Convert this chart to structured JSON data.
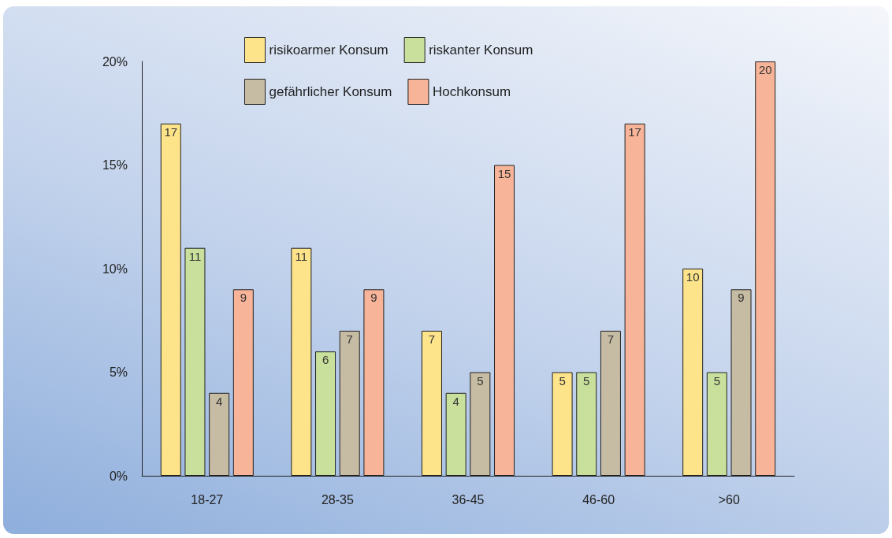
{
  "chart_data": {
    "type": "bar",
    "categories": [
      "18-27",
      "28-35",
      "36-45",
      "46-60",
      ">60"
    ],
    "series": [
      {
        "name": "risikoarmer Konsum",
        "color": "#fde48a",
        "values": [
          17,
          11,
          7,
          5,
          10
        ]
      },
      {
        "name": "riskanter Konsum",
        "color": "#c9e09c",
        "values": [
          11,
          6,
          4,
          5,
          5
        ]
      },
      {
        "name": "gefährlicher Konsum",
        "color": "#c6bba3",
        "values": [
          4,
          7,
          5,
          7,
          9
        ]
      },
      {
        "name": "Hochkonsum",
        "color": "#f8b498",
        "values": [
          9,
          9,
          15,
          17,
          20
        ]
      }
    ],
    "ylim": [
      0,
      20
    ],
    "yticks": [
      {
        "value": 0,
        "label": "0%"
      },
      {
        "value": 5,
        "label": "5%"
      },
      {
        "value": 10,
        "label": "10%"
      },
      {
        "value": 15,
        "label": "15%"
      },
      {
        "value": 20,
        "label": "20%"
      }
    ],
    "grid": false,
    "legend": "top",
    "data_labels": true
  }
}
